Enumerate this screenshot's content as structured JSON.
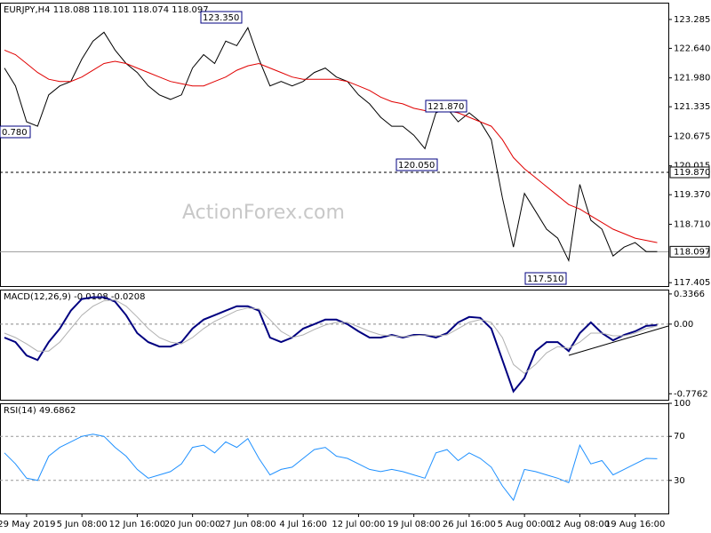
{
  "chart_data": [
    {
      "type": "line",
      "title": "EURJPY,H4  118.088 118.101 118.074 118.097",
      "watermark": "ActionForex.com",
      "ylim": [
        117.33,
        123.66
      ],
      "yticks": [
        123.285,
        {
          "value": 122.64,
          "label": "122.640"
        },
        {
          "value": 121.98,
          "label": "121.980"
        },
        121.335,
        120.675,
        120.015,
        {
          "value": 119.37,
          "label": "119.370"
        },
        {
          "value": 118.71,
          "label": "118.710"
        },
        117.405
      ],
      "levels": [
        {
          "value": 119.87,
          "label": "119.870",
          "style": "dashed"
        },
        {
          "value": 118.097,
          "label": "118.097",
          "style": "solid"
        }
      ],
      "annotations": [
        "123.350",
        "121.870",
        "120.050",
        "117.510",
        "0.780"
      ],
      "series": [
        {
          "name": "EURJPY",
          "color": "#000000",
          "values": [
            122.2,
            121.8,
            121.0,
            120.9,
            121.6,
            121.8,
            121.9,
            122.4,
            122.8,
            123.0,
            122.6,
            122.3,
            122.1,
            121.8,
            121.6,
            121.5,
            121.6,
            122.2,
            122.5,
            122.3,
            122.8,
            122.7,
            123.1,
            122.4,
            121.8,
            121.9,
            121.8,
            121.9,
            122.1,
            122.2,
            122.0,
            121.9,
            121.6,
            121.4,
            121.1,
            120.9,
            120.9,
            120.7,
            120.4,
            121.2,
            121.3,
            121.0,
            121.2,
            121.0,
            120.6,
            119.3,
            118.2,
            119.4,
            119.0,
            118.6,
            118.4,
            117.9,
            119.6,
            118.8,
            118.6,
            118.0,
            118.2,
            118.3,
            118.1,
            118.097
          ]
        },
        {
          "name": "MA",
          "color": "#e00000",
          "values": [
            122.6,
            122.5,
            122.3,
            122.1,
            121.95,
            121.9,
            121.9,
            122.0,
            122.15,
            122.3,
            122.35,
            122.3,
            122.2,
            122.1,
            122.0,
            121.9,
            121.85,
            121.8,
            121.8,
            121.9,
            122.0,
            122.15,
            122.25,
            122.3,
            122.2,
            122.1,
            122.0,
            121.95,
            121.95,
            121.95,
            121.95,
            121.9,
            121.8,
            121.7,
            121.55,
            121.45,
            121.4,
            121.3,
            121.25,
            121.25,
            121.25,
            121.2,
            121.1,
            121.0,
            120.9,
            120.6,
            120.2,
            119.95,
            119.75,
            119.55,
            119.35,
            119.15,
            119.05,
            118.9,
            118.75,
            118.6,
            118.5,
            118.4,
            118.35,
            118.3
          ]
        }
      ]
    },
    {
      "type": "line",
      "title": "MACD(12,26,9) -0.0108 -0.0208",
      "ylim": [
        -0.843,
        0.385
      ],
      "yticks": [
        0.3366,
        {
          "value": 0,
          "label": "0.00"
        },
        -0.7762
      ],
      "series": [
        {
          "name": "MACD",
          "color": "#000080",
          "values": [
            -0.15,
            -0.2,
            -0.35,
            -0.4,
            -0.2,
            -0.05,
            0.15,
            0.28,
            0.3,
            0.3,
            0.25,
            0.1,
            -0.1,
            -0.2,
            -0.25,
            -0.25,
            -0.2,
            -0.05,
            0.05,
            0.1,
            0.15,
            0.2,
            0.2,
            0.15,
            -0.15,
            -0.2,
            -0.15,
            -0.05,
            0.0,
            0.05,
            0.05,
            0.0,
            -0.08,
            -0.15,
            -0.15,
            -0.12,
            -0.15,
            -0.12,
            -0.12,
            -0.15,
            -0.1,
            0.02,
            0.08,
            0.07,
            -0.05,
            -0.4,
            -0.75,
            -0.6,
            -0.3,
            -0.2,
            -0.2,
            -0.3,
            -0.1,
            0.02,
            -0.1,
            -0.18,
            -0.12,
            -0.08,
            -0.02,
            -0.01
          ]
        },
        {
          "name": "Signal",
          "color": "#b0b0b0",
          "values": [
            -0.1,
            -0.15,
            -0.22,
            -0.3,
            -0.3,
            -0.2,
            -0.05,
            0.1,
            0.2,
            0.26,
            0.27,
            0.2,
            0.08,
            -0.05,
            -0.15,
            -0.2,
            -0.22,
            -0.15,
            -0.05,
            0.03,
            0.09,
            0.15,
            0.18,
            0.17,
            0.05,
            -0.08,
            -0.15,
            -0.12,
            -0.06,
            -0.01,
            0.02,
            0.02,
            -0.03,
            -0.08,
            -0.12,
            -0.13,
            -0.14,
            -0.13,
            -0.12,
            -0.13,
            -0.12,
            -0.05,
            0.02,
            0.05,
            0.02,
            -0.15,
            -0.45,
            -0.55,
            -0.45,
            -0.32,
            -0.25,
            -0.27,
            -0.2,
            -0.1,
            -0.1,
            -0.13,
            -0.13,
            -0.1,
            -0.05,
            -0.02
          ]
        }
      ]
    },
    {
      "type": "line",
      "title": "RSI(14) 49.6862",
      "ylim": [
        0,
        100
      ],
      "yticks": [
        100,
        70,
        30
      ],
      "levels": [
        70,
        30
      ],
      "categories": [
        null,
        null,
        "29 May 2019",
        null,
        null,
        null,
        null,
        "5 Jun 08:00",
        null,
        null,
        null,
        null,
        "12 Jun 16:00",
        null,
        null,
        null,
        null,
        "20 Jun 00:00",
        null,
        null,
        null,
        null,
        "27 Jun 08:00",
        null,
        null,
        null,
        null,
        "4 Jul 16:00",
        null,
        null,
        null,
        null,
        "12 Jul 00:00",
        null,
        null,
        null,
        null,
        "19 Jul 08:00",
        null,
        null,
        null,
        null,
        "26 Jul 16:00",
        null,
        null,
        null,
        null,
        "5 Aug 00:00",
        null,
        null,
        null,
        null,
        "12 Aug 08:00",
        null,
        null,
        null,
        null,
        "19 Aug 16:00",
        null,
        null
      ],
      "series": [
        {
          "name": "RSI",
          "color": "#1e90ff",
          "values": [
            55,
            45,
            32,
            30,
            52,
            60,
            65,
            70,
            72,
            70,
            60,
            52,
            40,
            32,
            35,
            38,
            45,
            60,
            62,
            55,
            65,
            60,
            68,
            50,
            35,
            40,
            42,
            50,
            58,
            60,
            52,
            50,
            45,
            40,
            38,
            40,
            38,
            35,
            32,
            55,
            58,
            48,
            55,
            50,
            42,
            25,
            12,
            40,
            38,
            35,
            32,
            28,
            62,
            45,
            48,
            35,
            40,
            45,
            50,
            49.69
          ]
        }
      ]
    }
  ]
}
